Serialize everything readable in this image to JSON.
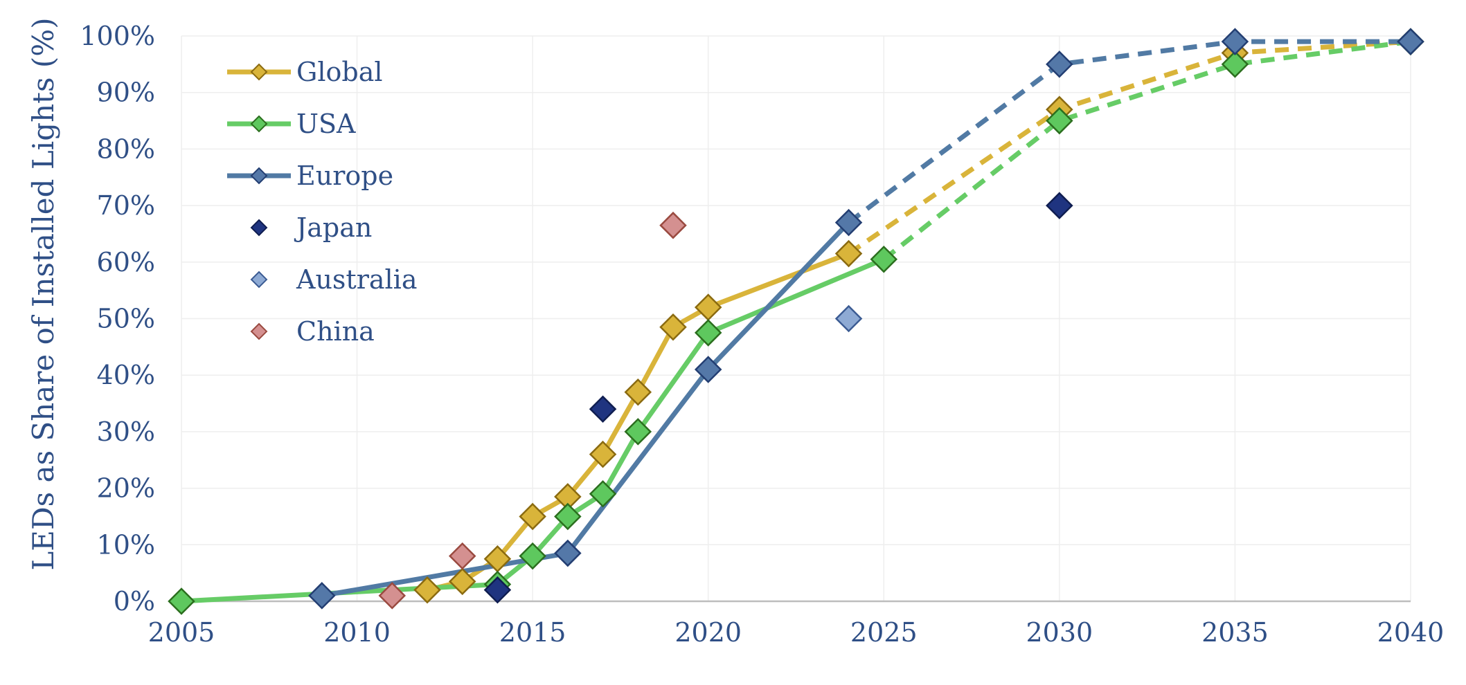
{
  "chart_data": {
    "type": "line",
    "title": "",
    "xlabel": "",
    "ylabel": "LEDs as Share of Installed Lights (%)",
    "xlim": [
      2005,
      2040
    ],
    "ylim": [
      0,
      100
    ],
    "x_ticks": [
      "2005",
      "2010",
      "2015",
      "2020",
      "2025",
      "2030",
      "2035",
      "2040"
    ],
    "y_ticks": [
      "0%",
      "10%",
      "20%",
      "30%",
      "40%",
      "50%",
      "60%",
      "70%",
      "80%",
      "90%",
      "100%"
    ],
    "grid": true,
    "legend_position": "top-left",
    "series": [
      {
        "name": "Global",
        "color": "#d9b43a",
        "marker_fill": "#d9b43a",
        "marker_stroke": "#8a6a10",
        "x": [
          2012,
          2013,
          2014,
          2015,
          2016,
          2017,
          2018,
          2019,
          2020,
          2024
        ],
        "y": [
          2,
          3.5,
          7.5,
          15,
          18.5,
          26,
          37,
          48.5,
          52,
          61.5
        ],
        "projected_x": [
          2024,
          2030,
          2035,
          2040
        ],
        "projected_y": [
          61.5,
          87,
          97,
          99
        ]
      },
      {
        "name": "USA",
        "color": "#66cc66",
        "marker_fill": "#5ec85e",
        "marker_stroke": "#2b6e1e",
        "x": [
          2005,
          2014,
          2015,
          2016,
          2017,
          2018,
          2020,
          2025
        ],
        "y": [
          0,
          3,
          8,
          15,
          19,
          30,
          47.5,
          60.5
        ],
        "projected_x": [
          2025,
          2030,
          2035,
          2040
        ],
        "projected_y": [
          60.5,
          85,
          95,
          99
        ]
      },
      {
        "name": "Europe",
        "color": "#517aa4",
        "marker_fill": "#5478a8",
        "marker_stroke": "#233e72",
        "x": [
          2009,
          2016,
          2020,
          2024
        ],
        "y": [
          1,
          8.5,
          41,
          67
        ],
        "projected_x": [
          2024,
          2030,
          2035,
          2040
        ],
        "projected_y": [
          67,
          95,
          99,
          99
        ]
      },
      {
        "name": "Japan",
        "type": "scatter",
        "marker_fill": "#1f3480",
        "marker_stroke": "#0f1d50",
        "x": [
          2014,
          2017,
          2030
        ],
        "y": [
          2,
          34,
          70
        ]
      },
      {
        "name": "Australia",
        "type": "scatter",
        "marker_fill": "#8eaad4",
        "marker_stroke": "#3b5b93",
        "x": [
          2024
        ],
        "y": [
          50
        ]
      },
      {
        "name": "China",
        "type": "scatter",
        "marker_fill": "#d49090",
        "marker_stroke": "#9a4a40",
        "x": [
          2011,
          2013,
          2019
        ],
        "y": [
          1,
          8,
          66.5
        ]
      }
    ]
  }
}
